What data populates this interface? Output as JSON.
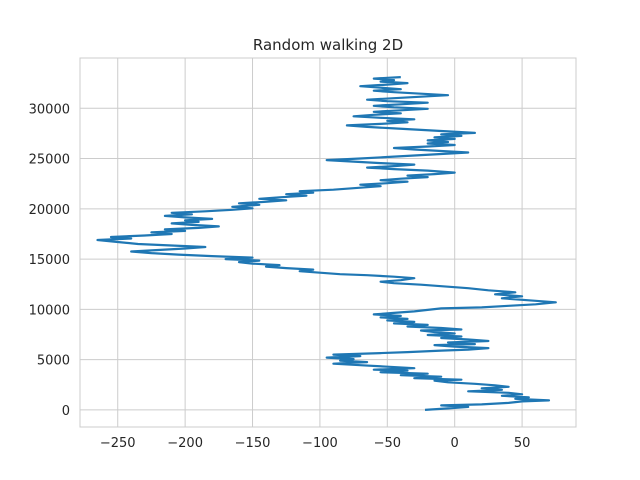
{
  "chart_data": {
    "type": "line",
    "title": "Random walking 2D",
    "xlabel": "",
    "ylabel": "",
    "xlim": [
      -278,
      90
    ],
    "ylim": [
      -1700,
      35000
    ],
    "xticks": [
      -250,
      -200,
      -150,
      -100,
      -50,
      0,
      50
    ],
    "yticks": [
      0,
      5000,
      10000,
      15000,
      20000,
      25000,
      30000
    ],
    "grid": true,
    "legend": "none",
    "series": [
      {
        "color": "#1f77b4",
        "points": [
          [
            -22,
            0
          ],
          [
            -5,
            150
          ],
          [
            10,
            300
          ],
          [
            -10,
            450
          ],
          [
            20,
            550
          ],
          [
            40,
            700
          ],
          [
            50,
            850
          ],
          [
            70,
            950
          ],
          [
            45,
            1100
          ],
          [
            55,
            1250
          ],
          [
            35,
            1400
          ],
          [
            50,
            1550
          ],
          [
            40,
            1700
          ],
          [
            10,
            1850
          ],
          [
            35,
            2000
          ],
          [
            20,
            2150
          ],
          [
            40,
            2300
          ],
          [
            30,
            2450
          ],
          [
            15,
            2600
          ],
          [
            -5,
            2750
          ],
          [
            -15,
            2900
          ],
          [
            5,
            3000
          ],
          [
            -30,
            3150
          ],
          [
            -10,
            3300
          ],
          [
            -40,
            3450
          ],
          [
            -20,
            3600
          ],
          [
            -55,
            3750
          ],
          [
            -35,
            3900
          ],
          [
            -60,
            4000
          ],
          [
            -30,
            4150
          ],
          [
            -50,
            4300
          ],
          [
            -70,
            4450
          ],
          [
            -90,
            4600
          ],
          [
            -65,
            4750
          ],
          [
            -85,
            4900
          ],
          [
            -75,
            5050
          ],
          [
            -95,
            5200
          ],
          [
            -70,
            5350
          ],
          [
            -90,
            5500
          ],
          [
            -55,
            5650
          ],
          [
            -35,
            5750
          ],
          [
            -10,
            5900
          ],
          [
            10,
            6000
          ],
          [
            25,
            6150
          ],
          [
            0,
            6300
          ],
          [
            -15,
            6450
          ],
          [
            15,
            6550
          ],
          [
            -5,
            6700
          ],
          [
            25,
            6850
          ],
          [
            10,
            7000
          ],
          [
            -10,
            7150
          ],
          [
            5,
            7300
          ],
          [
            -20,
            7450
          ],
          [
            0,
            7600
          ],
          [
            -15,
            7750
          ],
          [
            -25,
            7900
          ],
          [
            5,
            8000
          ],
          [
            -10,
            8150
          ],
          [
            -35,
            8300
          ],
          [
            -20,
            8450
          ],
          [
            -45,
            8600
          ],
          [
            -30,
            8750
          ],
          [
            -50,
            8900
          ],
          [
            -35,
            9050
          ],
          [
            -55,
            9200
          ],
          [
            -40,
            9350
          ],
          [
            -60,
            9500
          ],
          [
            -45,
            9650
          ],
          [
            -30,
            9800
          ],
          [
            -20,
            9950
          ],
          [
            -10,
            10100
          ],
          [
            20,
            10200
          ],
          [
            40,
            10350
          ],
          [
            60,
            10500
          ],
          [
            75,
            10700
          ],
          [
            55,
            10900
          ],
          [
            35,
            11100
          ],
          [
            50,
            11300
          ],
          [
            30,
            11500
          ],
          [
            45,
            11700
          ],
          [
            25,
            11900
          ],
          [
            10,
            12100
          ],
          [
            -10,
            12300
          ],
          [
            -25,
            12450
          ],
          [
            -45,
            12600
          ],
          [
            -55,
            12750
          ],
          [
            -40,
            12900
          ],
          [
            -30,
            13100
          ],
          [
            -45,
            13250
          ],
          [
            -65,
            13400
          ],
          [
            -85,
            13500
          ],
          [
            -100,
            13650
          ],
          [
            -115,
            13800
          ],
          [
            -105,
            13950
          ],
          [
            -125,
            14100
          ],
          [
            -140,
            14250
          ],
          [
            -130,
            14400
          ],
          [
            -150,
            14550
          ],
          [
            -160,
            14700
          ],
          [
            -145,
            14850
          ],
          [
            -170,
            15000
          ],
          [
            -150,
            15150
          ],
          [
            -180,
            15300
          ],
          [
            -205,
            15450
          ],
          [
            -225,
            15600
          ],
          [
            -240,
            15750
          ],
          [
            -220,
            15900
          ],
          [
            -200,
            16050
          ],
          [
            -185,
            16200
          ],
          [
            -210,
            16350
          ],
          [
            -235,
            16500
          ],
          [
            -250,
            16700
          ],
          [
            -265,
            16900
          ],
          [
            -240,
            17050
          ],
          [
            -255,
            17200
          ],
          [
            -230,
            17350
          ],
          [
            -210,
            17500
          ],
          [
            -225,
            17650
          ],
          [
            -200,
            17800
          ],
          [
            -215,
            17950
          ],
          [
            -190,
            18100
          ],
          [
            -175,
            18250
          ],
          [
            -195,
            18400
          ],
          [
            -210,
            18550
          ],
          [
            -190,
            18700
          ],
          [
            -200,
            18850
          ],
          [
            -180,
            19000
          ],
          [
            -200,
            19150
          ],
          [
            -215,
            19300
          ],
          [
            -195,
            19450
          ],
          [
            -210,
            19600
          ],
          [
            -185,
            19750
          ],
          [
            -165,
            19900
          ],
          [
            -150,
            20050
          ],
          [
            -165,
            20200
          ],
          [
            -145,
            20400
          ],
          [
            -160,
            20550
          ],
          [
            -140,
            20700
          ],
          [
            -125,
            20850
          ],
          [
            -145,
            21000
          ],
          [
            -130,
            21150
          ],
          [
            -110,
            21300
          ],
          [
            -125,
            21450
          ],
          [
            -105,
            21600
          ],
          [
            -115,
            21750
          ],
          [
            -90,
            21900
          ],
          [
            -75,
            22050
          ],
          [
            -55,
            22250
          ],
          [
            -70,
            22400
          ],
          [
            -50,
            22550
          ],
          [
            -35,
            22700
          ],
          [
            -55,
            22850
          ],
          [
            -40,
            23000
          ],
          [
            -20,
            23150
          ],
          [
            -35,
            23300
          ],
          [
            -15,
            23450
          ],
          [
            0,
            23600
          ],
          [
            -20,
            23800
          ],
          [
            -45,
            23950
          ],
          [
            -65,
            24100
          ],
          [
            -45,
            24250
          ],
          [
            -30,
            24400
          ],
          [
            -55,
            24550
          ],
          [
            -75,
            24700
          ],
          [
            -95,
            24850
          ],
          [
            -70,
            25000
          ],
          [
            -50,
            25150
          ],
          [
            -30,
            25300
          ],
          [
            -10,
            25450
          ],
          [
            10,
            25600
          ],
          [
            -10,
            25750
          ],
          [
            -30,
            25900
          ],
          [
            -45,
            26050
          ],
          [
            -20,
            26200
          ],
          [
            0,
            26350
          ],
          [
            -20,
            26500
          ],
          [
            -5,
            26650
          ],
          [
            -20,
            26800
          ],
          [
            0,
            26950
          ],
          [
            -15,
            27100
          ],
          [
            5,
            27250
          ],
          [
            -10,
            27400
          ],
          [
            15,
            27550
          ],
          [
            -5,
            27700
          ],
          [
            -25,
            27850
          ],
          [
            -45,
            28000
          ],
          [
            -65,
            28150
          ],
          [
            -80,
            28300
          ],
          [
            -55,
            28450
          ],
          [
            -35,
            28600
          ],
          [
            -50,
            28750
          ],
          [
            -30,
            28900
          ],
          [
            -55,
            29050
          ],
          [
            -75,
            29200
          ],
          [
            -60,
            29350
          ],
          [
            -40,
            29500
          ],
          [
            -60,
            29650
          ],
          [
            -40,
            29800
          ],
          [
            -20,
            29950
          ],
          [
            -45,
            30100
          ],
          [
            -60,
            30250
          ],
          [
            -40,
            30400
          ],
          [
            -20,
            30550
          ],
          [
            -50,
            30700
          ],
          [
            -65,
            30850
          ],
          [
            -45,
            31000
          ],
          [
            -25,
            31150
          ],
          [
            -5,
            31300
          ],
          [
            -25,
            31450
          ],
          [
            -45,
            31600
          ],
          [
            -60,
            31750
          ],
          [
            -40,
            31900
          ],
          [
            -55,
            32050
          ],
          [
            -70,
            32200
          ],
          [
            -50,
            32350
          ],
          [
            -35,
            32500
          ],
          [
            -55,
            32650
          ],
          [
            -45,
            32800
          ],
          [
            -60,
            32950
          ],
          [
            -40,
            33100
          ]
        ]
      }
    ]
  }
}
